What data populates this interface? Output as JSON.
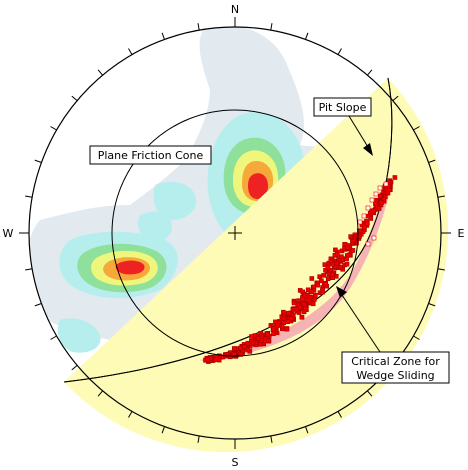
{
  "compass": {
    "north": "N",
    "east": "E",
    "south": "S",
    "west": "W"
  },
  "callouts": {
    "plane_friction_cone": "Plane Friction Cone",
    "pit_slope": "Pit Slope",
    "critical_zone_line1": "Critical Zone for",
    "critical_zone_line2": "Wedge Sliding"
  },
  "colors": {
    "contour_low": "#e2eaf0",
    "contour_cyan": "#b6eeee",
    "contour_green": "#8fe09a",
    "contour_yellow": "#eef77c",
    "contour_orange": "#f6a93a",
    "contour_red": "#ee2222",
    "critical_fill": "#f6b3b3",
    "slope_band_fill": "#fdfbb6",
    "pole_marker": "#ee0000"
  },
  "stereonet": {
    "tick_interval_degrees": 10
  }
}
